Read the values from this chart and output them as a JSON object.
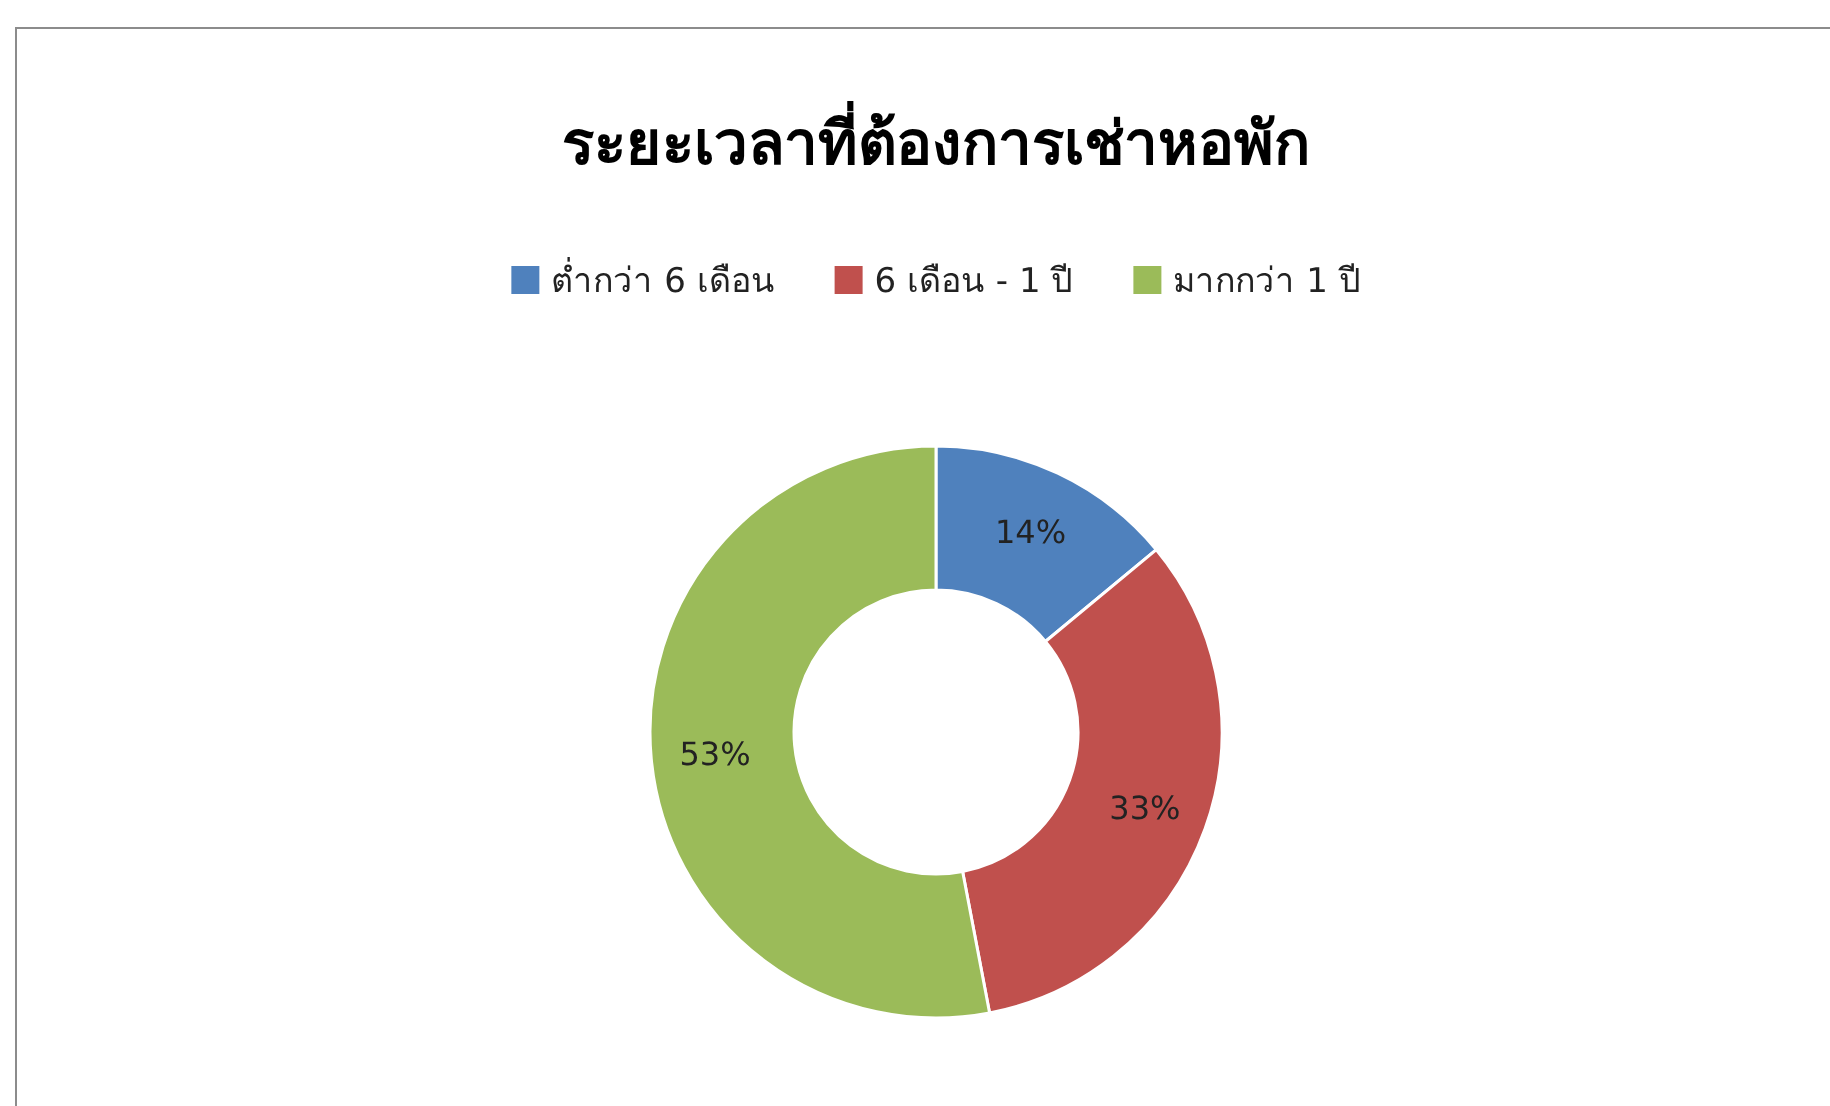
{
  "chart_data": {
    "type": "donut",
    "title": "ระยะเวลาที่ต้องการเช่าหอพัก",
    "categories": [
      "ต่ำกว่า 6 เดือน",
      "6 เดือน - 1 ปี",
      "มากกว่า 1 ปี"
    ],
    "values": [
      14,
      33,
      53
    ],
    "colors": [
      "#4f81bd",
      "#c0504d",
      "#9bbb59"
    ],
    "value_labels": [
      "14%",
      "33%",
      "53%"
    ],
    "legend": "top"
  }
}
